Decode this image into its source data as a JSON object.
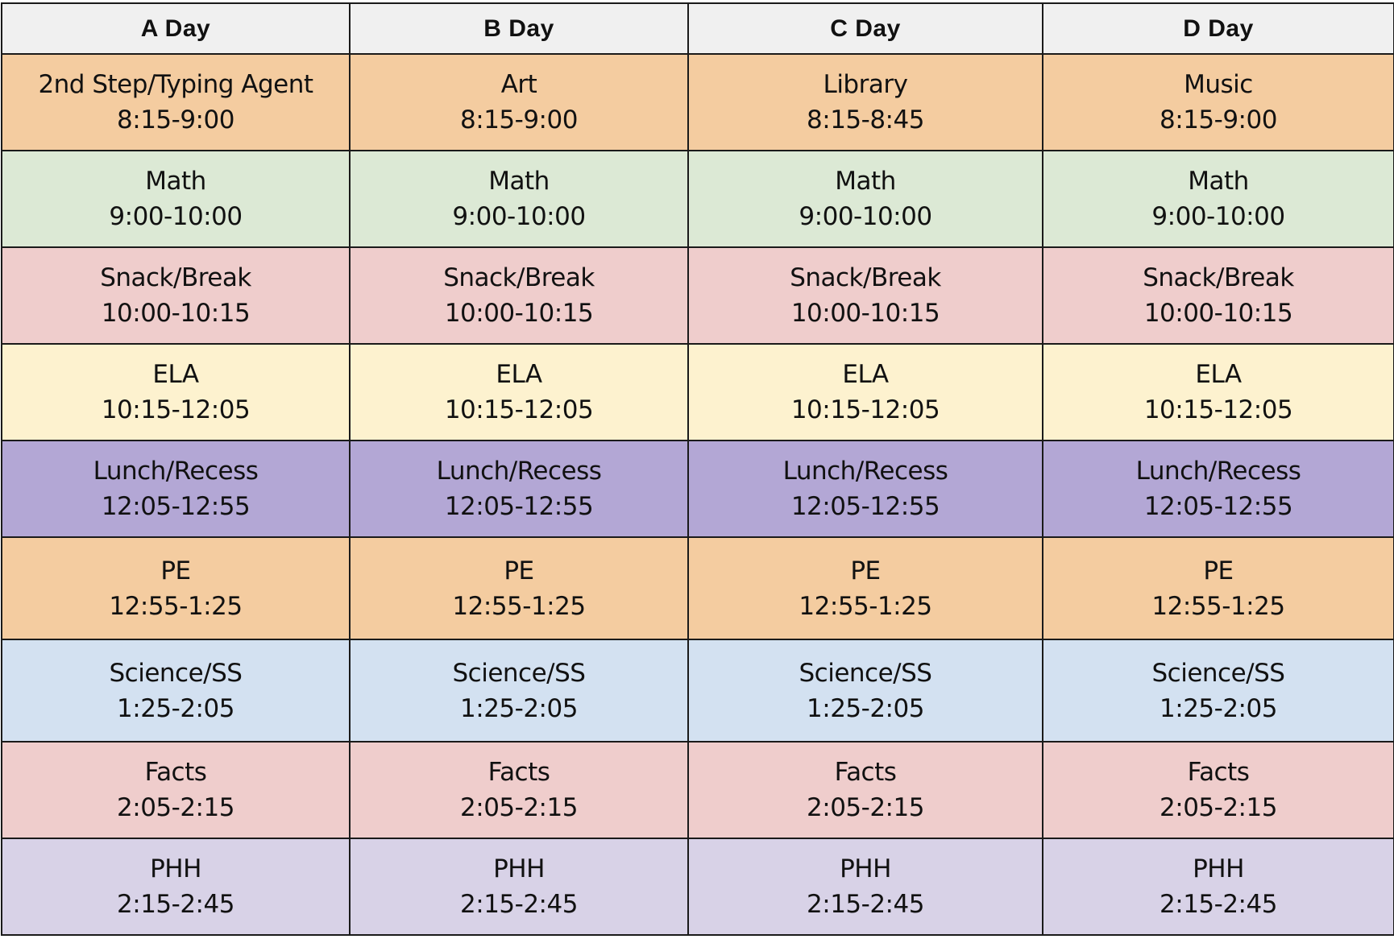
{
  "headers": [
    "A Day",
    "B Day",
    "C Day",
    "D Day"
  ],
  "rows": [
    {
      "color": "#f4cca0",
      "cells": [
        {
          "subject": "2nd Step/Typing Agent",
          "time": "8:15-9:00"
        },
        {
          "subject": "Art",
          "time": "8:15-9:00"
        },
        {
          "subject": "Library",
          "time": "8:15-8:45"
        },
        {
          "subject": "Music",
          "time": "8:15-9:00"
        }
      ]
    },
    {
      "color": "#dce9d5",
      "cells": [
        {
          "subject": "Math",
          "time": "9:00-10:00"
        },
        {
          "subject": "Math",
          "time": "9:00-10:00"
        },
        {
          "subject": "Math",
          "time": "9:00-10:00"
        },
        {
          "subject": "Math",
          "time": "9:00-10:00"
        }
      ]
    },
    {
      "color": "#efcdcc",
      "cells": [
        {
          "subject": "Snack/Break",
          "time": "10:00-10:15"
        },
        {
          "subject": "Snack/Break",
          "time": "10:00-10:15"
        },
        {
          "subject": "Snack/Break",
          "time": "10:00-10:15"
        },
        {
          "subject": "Snack/Break",
          "time": "10:00-10:15"
        }
      ]
    },
    {
      "color": "#fdf2cf",
      "cells": [
        {
          "subject": "ELA",
          "time": "10:15-12:05"
        },
        {
          "subject": "ELA",
          "time": "10:15-12:05"
        },
        {
          "subject": "ELA",
          "time": "10:15-12:05"
        },
        {
          "subject": "ELA",
          "time": "10:15-12:05"
        }
      ]
    },
    {
      "color": "#b3a7d5",
      "cells": [
        {
          "subject": "Lunch/Recess",
          "time": "12:05-12:55"
        },
        {
          "subject": "Lunch/Recess",
          "time": "12:05-12:55"
        },
        {
          "subject": "Lunch/Recess",
          "time": "12:05-12:55"
        },
        {
          "subject": "Lunch/Recess",
          "time": "12:05-12:55"
        }
      ]
    },
    {
      "color": "#f4cca0",
      "cells": [
        {
          "subject": "PE",
          "time": "12:55-1:25"
        },
        {
          "subject": "PE",
          "time": "12:55-1:25"
        },
        {
          "subject": "PE",
          "time": "12:55-1:25"
        },
        {
          "subject": "PE",
          "time": "12:55-1:25"
        }
      ]
    },
    {
      "color": "#d3e1f1",
      "cells": [
        {
          "subject": "Science/SS",
          "time": "1:25-2:05"
        },
        {
          "subject": "Science/SS",
          "time": "1:25-2:05"
        },
        {
          "subject": "Science/SS",
          "time": "1:25-2:05"
        },
        {
          "subject": "Science/SS",
          "time": "1:25-2:05"
        }
      ]
    },
    {
      "color": "#efcdcc",
      "cells": [
        {
          "subject": "Facts",
          "time": "2:05-2:15"
        },
        {
          "subject": "Facts",
          "time": "2:05-2:15"
        },
        {
          "subject": "Facts",
          "time": "2:05-2:15"
        },
        {
          "subject": "Facts",
          "time": "2:05-2:15"
        }
      ]
    },
    {
      "color": "#d8d2e7",
      "cells": [
        {
          "subject": "PHH",
          "time": "2:15-2:45"
        },
        {
          "subject": "PHH",
          "time": "2:15-2:45"
        },
        {
          "subject": "PHH",
          "time": "2:15-2:45"
        },
        {
          "subject": "PHH",
          "time": "2:15-2:45"
        }
      ]
    }
  ]
}
